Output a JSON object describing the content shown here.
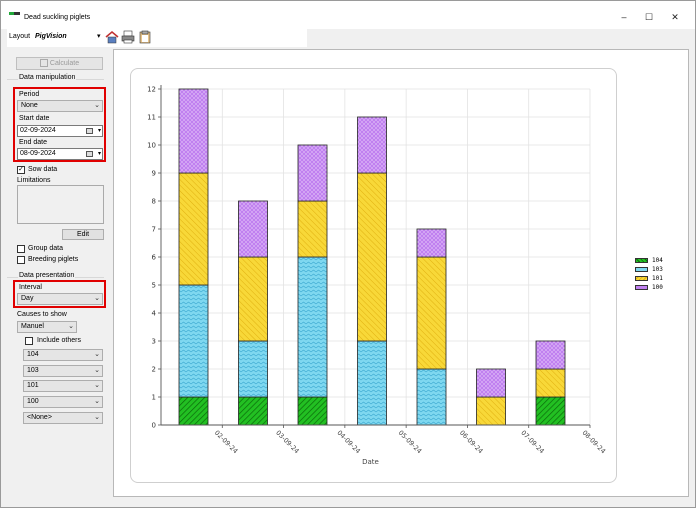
{
  "window": {
    "title": "Dead suckling piglets"
  },
  "toolbar": {
    "layout_label": "Layout",
    "layout_value": "PigVision"
  },
  "left": {
    "calculate_label": "Calculate",
    "data_manipulation": "Data manipulation",
    "period_label": "Period",
    "period_value": "None",
    "start_date_label": "Start date",
    "start_date_value": "02-09-2024",
    "end_date_label": "End date",
    "end_date_value": "08-09-2024",
    "sow_data_label": "Sow data",
    "limitations_label": "Limitations",
    "edit_label": "Edit",
    "group_data_label": "Group data",
    "breeding_piglets_label": "Breeding piglets",
    "data_presentation": "Data presentation",
    "interval_label": "Interval",
    "interval_value": "Day",
    "causes_label": "Causes to show",
    "causes_value": "Manuel",
    "include_others_label": "Include others",
    "cause_selects": [
      "104",
      "103",
      "101",
      "100",
      "<None>"
    ]
  },
  "chart_data": {
    "type": "bar",
    "stacked": true,
    "categories": [
      "02-09-24",
      "03-09-24",
      "04-09-24",
      "05-09-24",
      "06-09-24",
      "07-09-24",
      "08-09-24"
    ],
    "series": [
      {
        "name": "104",
        "color": "#22c022",
        "values": [
          1,
          1,
          1,
          0,
          0,
          0,
          1
        ]
      },
      {
        "name": "103",
        "color": "#7fd8f0",
        "values": [
          4,
          2,
          5,
          3,
          2,
          0,
          0
        ]
      },
      {
        "name": "101",
        "color": "#f8d838",
        "values": [
          4,
          3,
          2,
          6,
          4,
          1,
          1
        ]
      },
      {
        "name": "100",
        "color": "#c080f0",
        "values": [
          3,
          2,
          2,
          2,
          1,
          1,
          1
        ]
      }
    ],
    "xlabel": "Date",
    "ylabel": "",
    "ylim": [
      0,
      12
    ],
    "yticks": [
      "0",
      "1",
      "2",
      "3",
      "4",
      "5",
      "6",
      "7",
      "8",
      "9",
      "10",
      "11",
      "12"
    ],
    "grid": true,
    "legend": "right"
  }
}
